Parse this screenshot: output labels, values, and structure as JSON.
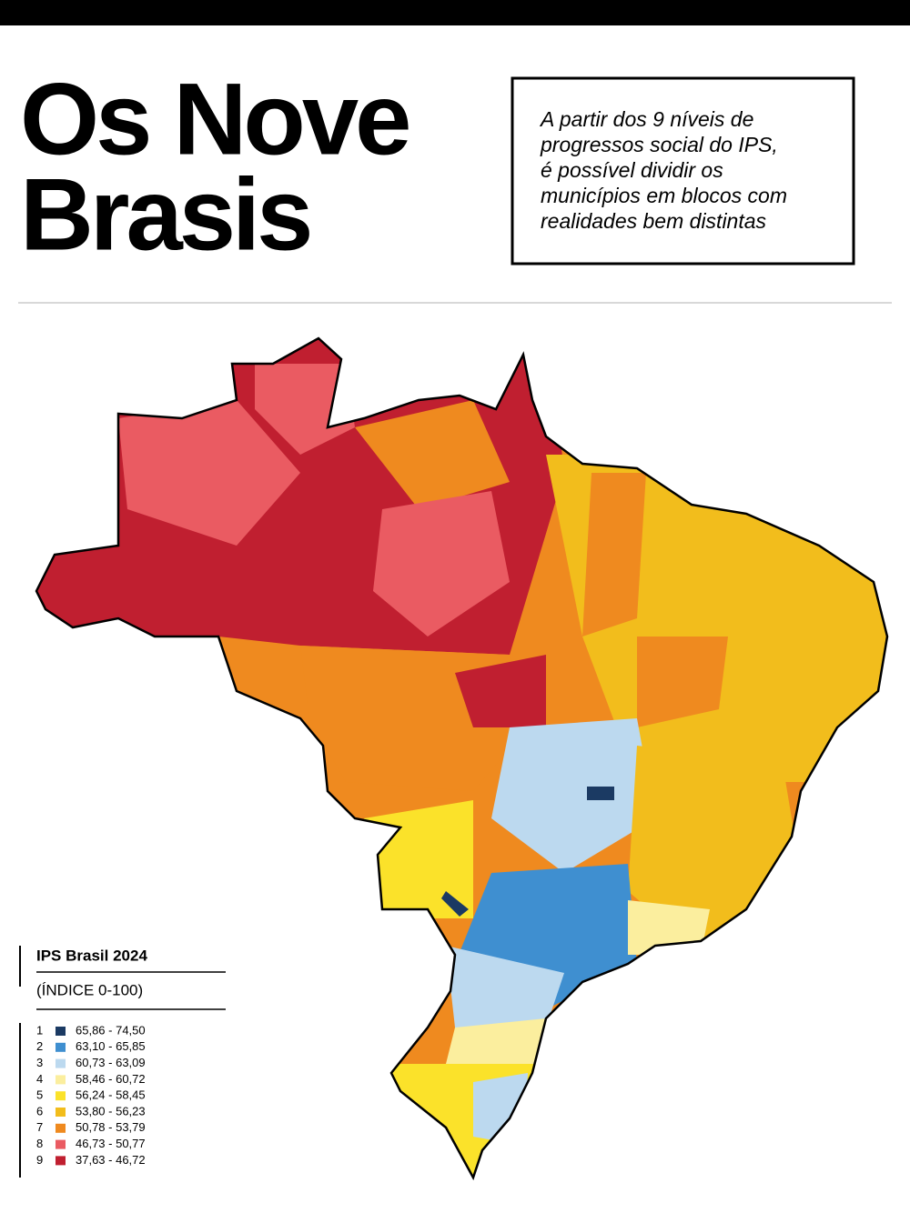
{
  "header": {
    "title": [
      "Os Nove",
      "Brasis"
    ],
    "description": [
      "A partir dos 9 níveis de",
      "progressos social do IPS,",
      "é possível dividir os",
      "municípios em blocos com",
      "realidades bem distintas"
    ]
  },
  "legend": {
    "title": "IPS Brasil 2024",
    "subtitle": "(ÍNDICE 0-100)",
    "items": [
      {
        "level": "1",
        "range": "65,86 - 74,50",
        "color": "#1b3a63"
      },
      {
        "level": "2",
        "range": "63,10 - 65,85",
        "color": "#3f8fd0"
      },
      {
        "level": "3",
        "range": "60,73 - 63,09",
        "color": "#bcd9ef"
      },
      {
        "level": "4",
        "range": "58,46 - 60,72",
        "color": "#fbee9e"
      },
      {
        "level": "5",
        "range": "56,24 - 58,45",
        "color": "#fbe22a"
      },
      {
        "level": "6",
        "range": "53,80 - 56,23",
        "color": "#f2bd1c"
      },
      {
        "level": "7",
        "range": "50,78 - 53,79",
        "color": "#ef8a1f"
      },
      {
        "level": "8",
        "range": "46,73 - 50,77",
        "color": "#ea5b62"
      },
      {
        "level": "9",
        "range": "37,63 - 46,72",
        "color": "#c01f30"
      }
    ]
  }
}
